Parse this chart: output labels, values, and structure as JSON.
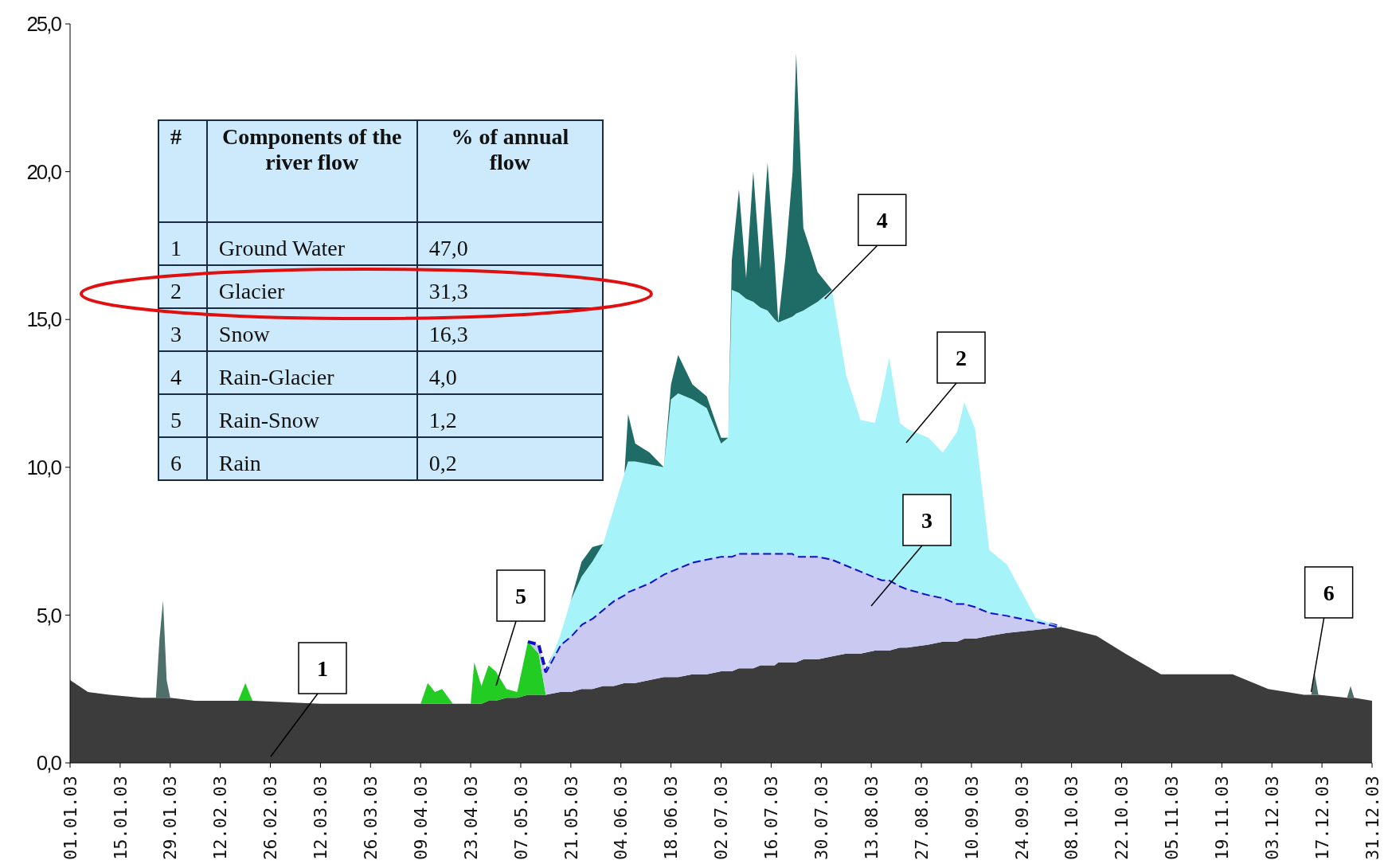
{
  "chart_data": {
    "type": "area",
    "stacked": true,
    "x": [
      "--01-01",
      "--01-06",
      "--01-12",
      "--01-21",
      "--01-25",
      "--01-26",
      "--01-27",
      "--01-28",
      "--01-29",
      "--02-05",
      "--02-17",
      "--02-19",
      "--02-21",
      "--03-12",
      "--04-01",
      "--04-09",
      "--04-11",
      "--04-13",
      "--04-15",
      "--04-18",
      "--04-23",
      "--04-24",
      "--04-26",
      "--04-28",
      "--04-30",
      "--05-03",
      "--05-06",
      "--05-09",
      "--05-12",
      "--05-14",
      "--05-18",
      "--05-21",
      "--05-24",
      "--05-27",
      "--05-30",
      "--06-02",
      "--06-05",
      "--06-06",
      "--06-08",
      "--06-12",
      "--06-16",
      "--06-18",
      "--06-20",
      "--06-24",
      "--06-28",
      "--07-02",
      "--07-04",
      "--07-05",
      "--07-07",
      "--07-09",
      "--07-11",
      "--07-13",
      "--07-15",
      "--07-17",
      "--07-18",
      "--07-20",
      "--07-22",
      "--07-23",
      "--07-25",
      "--07-29",
      "--08-02",
      "--08-06",
      "--08-10",
      "--08-14",
      "--08-16",
      "--08-18",
      "--08-21",
      "--08-23",
      "--08-29",
      "--09-02",
      "--09-06",
      "--09-08",
      "--09-11",
      "--09-15",
      "--09-20",
      "--09-28",
      "--10-05",
      "--10-15",
      "--10-23",
      "--11-02",
      "--11-22",
      "--12-02",
      "--12-12",
      "--12-14",
      "--12-15",
      "--12-16",
      "--12-24",
      "--12-25",
      "--12-26",
      "--12-31"
    ],
    "series": [
      {
        "color": "#3c3c3c",
        "values": [
          2.8,
          2.4,
          2.3,
          2.2,
          2.2,
          2.2,
          2.2,
          2.2,
          2.2,
          2.1,
          2.1,
          2.1,
          2.1,
          2.0,
          2.0,
          2.0,
          2.0,
          2.0,
          2.0,
          2.0,
          2.0,
          2.0,
          2.0,
          2.1,
          2.1,
          2.2,
          2.2,
          2.3,
          2.3,
          2.3,
          2.4,
          2.4,
          2.5,
          2.5,
          2.6,
          2.6,
          2.7,
          2.7,
          2.7,
          2.8,
          2.9,
          2.9,
          2.9,
          3.0,
          3.0,
          3.1,
          3.1,
          3.1,
          3.2,
          3.2,
          3.2,
          3.3,
          3.3,
          3.3,
          3.4,
          3.4,
          3.4,
          3.4,
          3.5,
          3.5,
          3.6,
          3.7,
          3.7,
          3.8,
          3.8,
          3.8,
          3.9,
          3.9,
          4.0,
          4.1,
          4.1,
          4.2,
          4.2,
          4.3,
          4.4,
          4.5,
          4.6,
          4.3,
          3.7,
          3.0,
          3.0,
          2.5,
          2.3,
          2.3,
          2.3,
          2.3,
          2.2,
          2.2,
          2.2,
          2.1
        ]
      },
      {
        "color": "#4f6f6a",
        "values": [
          null,
          null,
          null,
          null,
          0,
          2.0,
          3.3,
          0.6,
          0,
          null,
          null,
          null,
          null,
          null,
          null,
          null,
          null,
          null,
          null,
          null,
          null,
          null,
          null,
          null,
          null,
          null,
          null,
          null,
          null,
          null,
          null,
          null,
          null,
          null,
          null,
          null,
          null,
          null,
          null,
          null,
          null,
          null,
          null,
          null,
          null,
          null,
          null,
          null,
          null,
          null,
          null,
          null,
          null,
          null,
          null,
          null,
          null,
          null,
          null,
          null,
          null,
          null,
          null,
          null,
          null,
          null,
          null,
          null,
          null,
          null,
          null,
          null,
          null,
          null,
          null,
          null,
          null,
          null,
          null,
          null,
          null,
          null,
          null,
          0,
          0.7,
          0,
          0,
          0.4,
          0,
          null
        ]
      },
      {
        "color": "#22cc22",
        "values": [
          null,
          null,
          null,
          null,
          null,
          null,
          null,
          null,
          null,
          null,
          0,
          0.6,
          0,
          null,
          null,
          0,
          0.7,
          0.4,
          0.5,
          0,
          0,
          1.4,
          0.6,
          1.2,
          1.0,
          0.3,
          0.2,
          1.8,
          1.4,
          0,
          null,
          null,
          null,
          null,
          null,
          null,
          null,
          null,
          null,
          null,
          null,
          null,
          null,
          null,
          null,
          null,
          null,
          null,
          null,
          null,
          null,
          null,
          null,
          null,
          null,
          null,
          null,
          null,
          null,
          null,
          null,
          null,
          null,
          null,
          null,
          null,
          null,
          null,
          null,
          null,
          null,
          null,
          null,
          null,
          null,
          null,
          null,
          null,
          null,
          null,
          null,
          null,
          null,
          null,
          null,
          null,
          null,
          null,
          null,
          null
        ]
      },
      {
        "color": "#c9c9f2",
        "line_style": "dashed",
        "values": [
          null,
          null,
          null,
          null,
          null,
          null,
          null,
          null,
          null,
          null,
          null,
          null,
          null,
          null,
          null,
          null,
          null,
          null,
          null,
          null,
          null,
          null,
          null,
          null,
          null,
          null,
          null,
          0,
          0.3,
          0.8,
          1.6,
          1.9,
          2.2,
          2.4,
          2.6,
          2.9,
          3.0,
          3.1,
          3.2,
          3.3,
          3.5,
          3.6,
          3.7,
          3.8,
          3.9,
          3.9,
          3.9,
          3.9,
          3.9,
          3.9,
          3.9,
          3.8,
          3.8,
          3.8,
          3.7,
          3.7,
          3.7,
          3.6,
          3.5,
          3.5,
          3.3,
          3.0,
          2.8,
          2.5,
          2.4,
          2.4,
          2.1,
          2.0,
          1.7,
          1.5,
          1.3,
          1.2,
          1.1,
          0.8,
          0.6,
          0.3,
          0,
          null,
          null,
          null,
          null,
          null,
          null,
          null,
          null,
          null,
          null,
          null,
          null,
          null
        ]
      },
      {
        "color": "#a6f4fa",
        "values": [
          null,
          null,
          null,
          null,
          null,
          null,
          null,
          null,
          null,
          null,
          null,
          null,
          null,
          null,
          null,
          null,
          null,
          null,
          null,
          null,
          null,
          null,
          null,
          null,
          null,
          null,
          null,
          null,
          null,
          0,
          0.3,
          1.2,
          1.6,
          1.9,
          2.2,
          3.1,
          4.1,
          4.4,
          4.3,
          4.0,
          3.6,
          5.8,
          5.9,
          5.5,
          5.1,
          3.8,
          4.0,
          9.0,
          8.8,
          8.6,
          8.5,
          8.3,
          8.2,
          7.9,
          7.8,
          7.9,
          8.0,
          8.2,
          8.3,
          8.6,
          9.1,
          6.4,
          5.1,
          5.2,
          6.3,
          7.5,
          5.5,
          5.4,
          5.3,
          4.9,
          5.8,
          6.8,
          6.0,
          2.1,
          1.7,
          0.1,
          0,
          null,
          null,
          null,
          null,
          null,
          null,
          null,
          null,
          null,
          null,
          null,
          null,
          null
        ]
      },
      {
        "color": "#1f6b66",
        "values": [
          null,
          null,
          null,
          null,
          null,
          null,
          null,
          null,
          null,
          null,
          null,
          null,
          null,
          null,
          null,
          null,
          null,
          null,
          null,
          null,
          null,
          null,
          null,
          null,
          null,
          null,
          null,
          null,
          null,
          null,
          null,
          0,
          0.5,
          0.5,
          0,
          null,
          0,
          1.6,
          0.6,
          0.4,
          0,
          0.5,
          1.3,
          0.5,
          0.4,
          0.2,
          0,
          1.0,
          3.5,
          0.7,
          4.4,
          1.3,
          5.0,
          1.9,
          0,
          2.1,
          4.9,
          8.8,
          2.8,
          1.0,
          0,
          null,
          null,
          null,
          null,
          null,
          null,
          null,
          null,
          null,
          null,
          null,
          null,
          null,
          null,
          null,
          null,
          null,
          null,
          null,
          null,
          null,
          null,
          null,
          null,
          null,
          null,
          null,
          null,
          null
        ]
      }
    ],
    "xlim": [
      "--01-01",
      "--12-31"
    ],
    "xticks": [
      {
        "value": "--01-01",
        "label": "01.01.03"
      },
      {
        "value": "--01-15",
        "label": "15.01.03"
      },
      {
        "value": "--01-29",
        "label": "29.01.03"
      },
      {
        "value": "--02-12",
        "label": "12.02.03"
      },
      {
        "value": "--02-26",
        "label": "26.02.03"
      },
      {
        "value": "--03-12",
        "label": "12.03.03"
      },
      {
        "value": "--03-26",
        "label": "26.03.03"
      },
      {
        "value": "--04-09",
        "label": "09.04.03"
      },
      {
        "value": "--04-23",
        "label": "23.04.03"
      },
      {
        "value": "--05-07",
        "label": "07.05.03"
      },
      {
        "value": "--05-21",
        "label": "21.05.03"
      },
      {
        "value": "--06-04",
        "label": "04.06.03"
      },
      {
        "value": "--06-18",
        "label": "18.06.03"
      },
      {
        "value": "--07-02",
        "label": "02.07.03"
      },
      {
        "value": "--07-16",
        "label": "16.07.03"
      },
      {
        "value": "--07-30",
        "label": "30.07.03"
      },
      {
        "value": "--08-13",
        "label": "13.08.03"
      },
      {
        "value": "--08-27",
        "label": "27.08.03"
      },
      {
        "value": "--09-10",
        "label": "10.09.03"
      },
      {
        "value": "--09-24",
        "label": "24.09.03"
      },
      {
        "value": "--10-08",
        "label": "08.10.03"
      },
      {
        "value": "--10-22",
        "label": "22.10.03"
      },
      {
        "value": "--11-05",
        "label": "05.11.03"
      },
      {
        "value": "--11-19",
        "label": "19.11.03"
      },
      {
        "value": "--12-03",
        "label": "03.12.03"
      },
      {
        "value": "--12-17",
        "label": "17.12.03"
      },
      {
        "value": "--12-31",
        "label": "31.12.03"
      }
    ],
    "ylim": [
      0,
      25
    ],
    "yticks": [
      {
        "value": 0,
        "label": "0,0"
      },
      {
        "value": 5,
        "label": "5,0"
      },
      {
        "value": 10,
        "label": "10,0"
      },
      {
        "value": 15,
        "label": "15,0"
      },
      {
        "value": 20,
        "label": "20,0"
      },
      {
        "value": 25,
        "label": "25,0"
      }
    ],
    "grid": false,
    "annotations": [
      "#",
      "Components of the river flow",
      "% of annual flow",
      "1",
      "Ground Water",
      "47,0",
      "2",
      "Glacier",
      "31,3",
      "3",
      "Snow",
      "16,3",
      "4",
      "Rain-Glacier",
      "4,0",
      "5",
      "Rain-Snow",
      "1,2",
      "6",
      "Rain",
      "0,2",
      "1",
      "2",
      "3",
      "5",
      {
        "text": "4",
        "x": "--07-31",
        "y": 15.7
      },
      {
        "text": "6",
        "x": "--12-14",
        "y": 2.4
      }
    ]
  }
}
